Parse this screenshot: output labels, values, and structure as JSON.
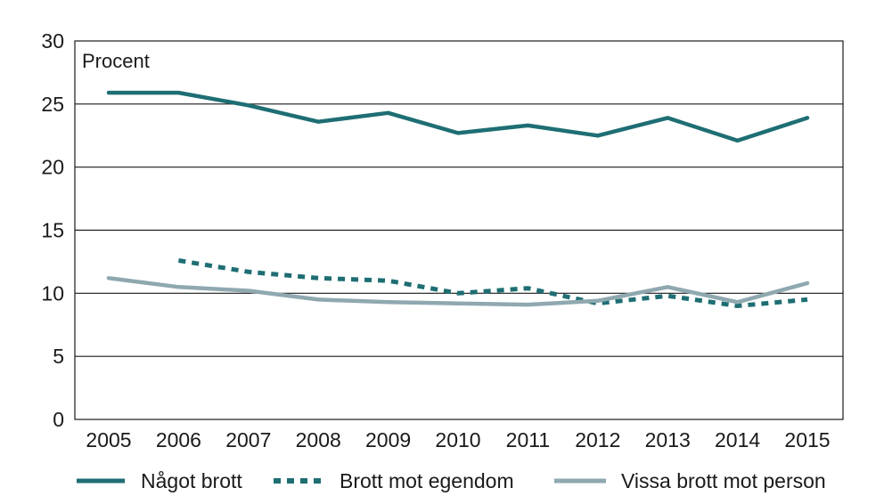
{
  "chart_data": {
    "type": "line",
    "unit_label": "Procent",
    "x": [
      "2005",
      "2006",
      "2007",
      "2008",
      "2009",
      "2010",
      "2011",
      "2012",
      "2013",
      "2014",
      "2015"
    ],
    "ylim": [
      0,
      30
    ],
    "yticks": [
      0,
      5,
      10,
      15,
      20,
      25,
      30
    ],
    "grid": true,
    "legend_position": "bottom",
    "series": [
      {
        "name": "Något brott",
        "color": "#1e6e73",
        "style": "solid",
        "values": [
          25.9,
          25.9,
          24.9,
          23.6,
          24.3,
          22.7,
          23.3,
          22.5,
          23.9,
          22.1,
          23.9
        ]
      },
      {
        "name": "Brott mot egendom",
        "color": "#1e6e73",
        "style": "dotted",
        "values": [
          null,
          12.6,
          11.7,
          11.2,
          11.0,
          10.0,
          10.4,
          9.2,
          9.8,
          9.0,
          9.5
        ]
      },
      {
        "name": "Vissa brott mot person",
        "color": "#8fa8b0",
        "style": "solid",
        "values": [
          11.2,
          10.5,
          10.2,
          9.5,
          9.3,
          9.2,
          9.1,
          9.4,
          10.5,
          9.3,
          10.8
        ]
      }
    ]
  }
}
